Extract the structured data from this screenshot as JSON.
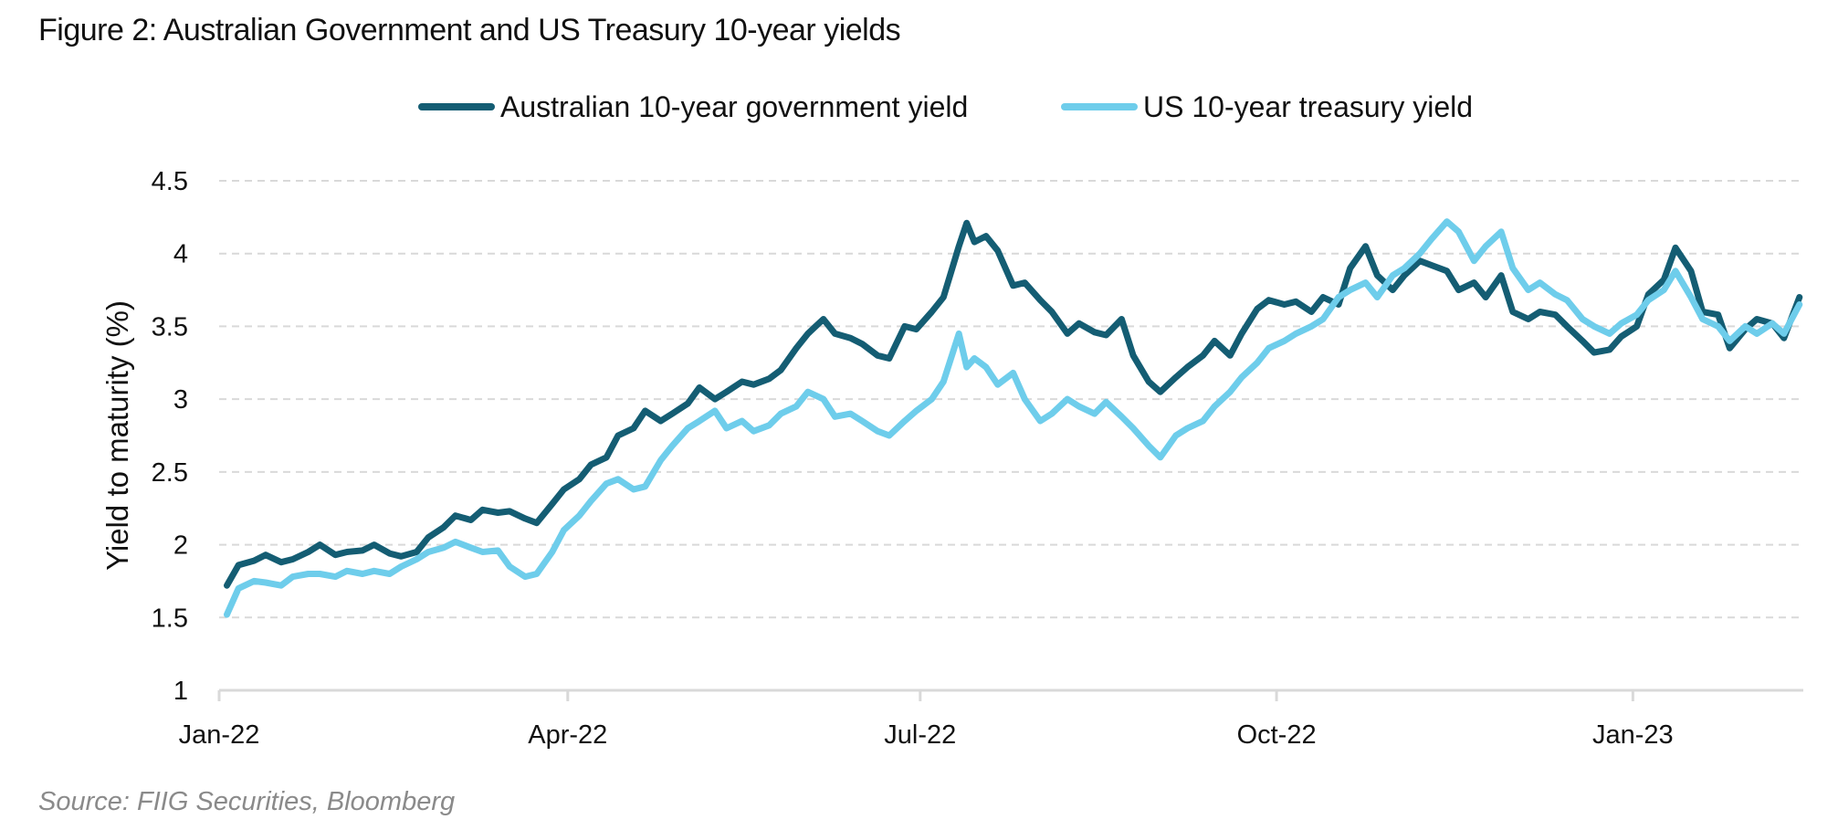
{
  "chart_data": {
    "type": "line",
    "title": "Figure 2: Australian Government and US Treasury 10-year yields",
    "ylabel": "Yield to maturity (%)",
    "xlabel": "",
    "ylim": [
      1,
      4.5
    ],
    "yticks": [
      "1",
      "1.5",
      "2",
      "2.5",
      "3",
      "3.5",
      "4",
      "4.5"
    ],
    "ytick_values": [
      1,
      1.5,
      2,
      2.5,
      3,
      3.5,
      4,
      4.5
    ],
    "xticks": [
      "Jan-22",
      "Apr-22",
      "Jul-22",
      "Oct-22",
      "Jan-23"
    ],
    "xtick_dates": [
      "2022-01-01",
      "2022-04-01",
      "2022-07-01",
      "2022-10-01",
      "2023-01-01"
    ],
    "xlim": [
      "2022-01-01",
      "2023-02-14"
    ],
    "grid": "horizontal dashed",
    "legend_position": "top",
    "source": "Source: FIIG Securities, Bloomberg",
    "series": [
      {
        "name": "Australian 10-year government yield",
        "color": "#145d73",
        "points": [
          [
            "2022-01-03",
            1.72
          ],
          [
            "2022-01-06",
            1.86
          ],
          [
            "2022-01-10",
            1.89
          ],
          [
            "2022-01-13",
            1.93
          ],
          [
            "2022-01-17",
            1.88
          ],
          [
            "2022-01-20",
            1.9
          ],
          [
            "2022-01-24",
            1.95
          ],
          [
            "2022-01-27",
            2.0
          ],
          [
            "2022-01-31",
            1.93
          ],
          [
            "2022-02-03",
            1.95
          ],
          [
            "2022-02-07",
            1.96
          ],
          [
            "2022-02-10",
            2.0
          ],
          [
            "2022-02-14",
            1.94
          ],
          [
            "2022-02-17",
            1.92
          ],
          [
            "2022-02-21",
            1.95
          ],
          [
            "2022-02-24",
            2.05
          ],
          [
            "2022-02-28",
            2.12
          ],
          [
            "2022-03-03",
            2.2
          ],
          [
            "2022-03-07",
            2.17
          ],
          [
            "2022-03-10",
            2.24
          ],
          [
            "2022-03-14",
            2.22
          ],
          [
            "2022-03-17",
            2.23
          ],
          [
            "2022-03-21",
            2.18
          ],
          [
            "2022-03-24",
            2.15
          ],
          [
            "2022-03-28",
            2.28
          ],
          [
            "2022-03-31",
            2.38
          ],
          [
            "2022-04-04",
            2.45
          ],
          [
            "2022-04-07",
            2.55
          ],
          [
            "2022-04-11",
            2.6
          ],
          [
            "2022-04-14",
            2.75
          ],
          [
            "2022-04-18",
            2.8
          ],
          [
            "2022-04-21",
            2.92
          ],
          [
            "2022-04-25",
            2.85
          ],
          [
            "2022-04-28",
            2.9
          ],
          [
            "2022-05-02",
            2.97
          ],
          [
            "2022-05-05",
            3.08
          ],
          [
            "2022-05-09",
            3.0
          ],
          [
            "2022-05-12",
            3.05
          ],
          [
            "2022-05-16",
            3.12
          ],
          [
            "2022-05-19",
            3.1
          ],
          [
            "2022-05-23",
            3.14
          ],
          [
            "2022-05-26",
            3.2
          ],
          [
            "2022-05-30",
            3.35
          ],
          [
            "2022-06-02",
            3.45
          ],
          [
            "2022-06-06",
            3.55
          ],
          [
            "2022-06-09",
            3.45
          ],
          [
            "2022-06-13",
            3.42
          ],
          [
            "2022-06-16",
            3.38
          ],
          [
            "2022-06-20",
            3.3
          ],
          [
            "2022-06-23",
            3.28
          ],
          [
            "2022-06-27",
            3.5
          ],
          [
            "2022-06-30",
            3.48
          ],
          [
            "2022-07-04",
            3.6
          ],
          [
            "2022-07-07",
            3.7
          ],
          [
            "2022-07-11",
            4.05
          ],
          [
            "2022-07-13",
            4.21
          ],
          [
            "2022-07-15",
            4.08
          ],
          [
            "2022-07-18",
            4.12
          ],
          [
            "2022-07-21",
            4.02
          ],
          [
            "2022-07-25",
            3.78
          ],
          [
            "2022-07-28",
            3.8
          ],
          [
            "2022-08-01",
            3.68
          ],
          [
            "2022-08-04",
            3.6
          ],
          [
            "2022-08-08",
            3.45
          ],
          [
            "2022-08-11",
            3.52
          ],
          [
            "2022-08-15",
            3.46
          ],
          [
            "2022-08-18",
            3.44
          ],
          [
            "2022-08-22",
            3.55
          ],
          [
            "2022-08-25",
            3.3
          ],
          [
            "2022-08-29",
            3.12
          ],
          [
            "2022-09-01",
            3.05
          ],
          [
            "2022-09-05",
            3.15
          ],
          [
            "2022-09-08",
            3.22
          ],
          [
            "2022-09-12",
            3.3
          ],
          [
            "2022-09-15",
            3.4
          ],
          [
            "2022-09-19",
            3.3
          ],
          [
            "2022-09-22",
            3.45
          ],
          [
            "2022-09-26",
            3.62
          ],
          [
            "2022-09-29",
            3.68
          ],
          [
            "2022-10-03",
            3.65
          ],
          [
            "2022-10-06",
            3.67
          ],
          [
            "2022-10-10",
            3.6
          ],
          [
            "2022-10-13",
            3.7
          ],
          [
            "2022-10-17",
            3.65
          ],
          [
            "2022-10-20",
            3.9
          ],
          [
            "2022-10-24",
            4.05
          ],
          [
            "2022-10-27",
            3.85
          ],
          [
            "2022-10-31",
            3.75
          ],
          [
            "2022-11-03",
            3.85
          ],
          [
            "2022-11-07",
            3.95
          ],
          [
            "2022-11-10",
            3.92
          ],
          [
            "2022-11-14",
            3.88
          ],
          [
            "2022-11-17",
            3.75
          ],
          [
            "2022-11-21",
            3.8
          ],
          [
            "2022-11-24",
            3.7
          ],
          [
            "2022-11-28",
            3.85
          ],
          [
            "2022-12-01",
            3.6
          ],
          [
            "2022-12-05",
            3.55
          ],
          [
            "2022-12-08",
            3.6
          ],
          [
            "2022-12-12",
            3.58
          ],
          [
            "2022-12-15",
            3.5
          ],
          [
            "2022-12-19",
            3.4
          ],
          [
            "2022-12-22",
            3.32
          ],
          [
            "2022-12-26",
            3.34
          ],
          [
            "2022-12-29",
            3.43
          ],
          [
            "2023-01-02",
            3.5
          ],
          [
            "2023-01-05",
            3.72
          ],
          [
            "2023-01-09",
            3.82
          ],
          [
            "2023-01-12",
            4.04
          ],
          [
            "2023-01-16",
            3.88
          ],
          [
            "2023-01-19",
            3.6
          ],
          [
            "2023-01-23",
            3.58
          ],
          [
            "2023-01-26",
            3.35
          ],
          [
            "2023-01-30",
            3.48
          ],
          [
            "2023-02-02",
            3.55
          ],
          [
            "2023-02-06",
            3.52
          ],
          [
            "2023-02-09",
            3.42
          ],
          [
            "2023-02-13",
            3.7
          ]
        ]
      },
      {
        "name": "US 10-year treasury yield",
        "color": "#6ecdeb",
        "points": [
          [
            "2022-01-03",
            1.52
          ],
          [
            "2022-01-06",
            1.7
          ],
          [
            "2022-01-10",
            1.75
          ],
          [
            "2022-01-13",
            1.74
          ],
          [
            "2022-01-17",
            1.72
          ],
          [
            "2022-01-20",
            1.78
          ],
          [
            "2022-01-24",
            1.8
          ],
          [
            "2022-01-27",
            1.8
          ],
          [
            "2022-01-31",
            1.78
          ],
          [
            "2022-02-03",
            1.82
          ],
          [
            "2022-02-07",
            1.8
          ],
          [
            "2022-02-10",
            1.82
          ],
          [
            "2022-02-14",
            1.8
          ],
          [
            "2022-02-17",
            1.85
          ],
          [
            "2022-02-21",
            1.9
          ],
          [
            "2022-02-24",
            1.95
          ],
          [
            "2022-02-28",
            1.98
          ],
          [
            "2022-03-03",
            2.02
          ],
          [
            "2022-03-07",
            1.98
          ],
          [
            "2022-03-10",
            1.95
          ],
          [
            "2022-03-14",
            1.96
          ],
          [
            "2022-03-17",
            1.85
          ],
          [
            "2022-03-21",
            1.78
          ],
          [
            "2022-03-24",
            1.8
          ],
          [
            "2022-03-28",
            1.95
          ],
          [
            "2022-03-31",
            2.1
          ],
          [
            "2022-04-04",
            2.2
          ],
          [
            "2022-04-07",
            2.3
          ],
          [
            "2022-04-11",
            2.42
          ],
          [
            "2022-04-14",
            2.45
          ],
          [
            "2022-04-18",
            2.38
          ],
          [
            "2022-04-21",
            2.4
          ],
          [
            "2022-04-25",
            2.58
          ],
          [
            "2022-04-28",
            2.68
          ],
          [
            "2022-05-02",
            2.8
          ],
          [
            "2022-05-05",
            2.85
          ],
          [
            "2022-05-09",
            2.92
          ],
          [
            "2022-05-12",
            2.8
          ],
          [
            "2022-05-16",
            2.85
          ],
          [
            "2022-05-19",
            2.78
          ],
          [
            "2022-05-23",
            2.82
          ],
          [
            "2022-05-26",
            2.9
          ],
          [
            "2022-05-30",
            2.95
          ],
          [
            "2022-06-02",
            3.05
          ],
          [
            "2022-06-06",
            3.0
          ],
          [
            "2022-06-09",
            2.88
          ],
          [
            "2022-06-13",
            2.9
          ],
          [
            "2022-06-16",
            2.85
          ],
          [
            "2022-06-20",
            2.78
          ],
          [
            "2022-06-23",
            2.75
          ],
          [
            "2022-06-27",
            2.85
          ],
          [
            "2022-06-30",
            2.92
          ],
          [
            "2022-07-04",
            3.0
          ],
          [
            "2022-07-07",
            3.12
          ],
          [
            "2022-07-11",
            3.45
          ],
          [
            "2022-07-13",
            3.22
          ],
          [
            "2022-07-15",
            3.28
          ],
          [
            "2022-07-18",
            3.22
          ],
          [
            "2022-07-21",
            3.1
          ],
          [
            "2022-07-25",
            3.18
          ],
          [
            "2022-07-28",
            3.0
          ],
          [
            "2022-08-01",
            2.85
          ],
          [
            "2022-08-04",
            2.9
          ],
          [
            "2022-08-08",
            3.0
          ],
          [
            "2022-08-11",
            2.95
          ],
          [
            "2022-08-15",
            2.9
          ],
          [
            "2022-08-18",
            2.98
          ],
          [
            "2022-08-22",
            2.88
          ],
          [
            "2022-08-25",
            2.8
          ],
          [
            "2022-08-29",
            2.68
          ],
          [
            "2022-09-01",
            2.6
          ],
          [
            "2022-09-05",
            2.75
          ],
          [
            "2022-09-08",
            2.8
          ],
          [
            "2022-09-12",
            2.85
          ],
          [
            "2022-09-15",
            2.95
          ],
          [
            "2022-09-19",
            3.05
          ],
          [
            "2022-09-22",
            3.15
          ],
          [
            "2022-09-26",
            3.25
          ],
          [
            "2022-09-29",
            3.35
          ],
          [
            "2022-10-03",
            3.4
          ],
          [
            "2022-10-06",
            3.45
          ],
          [
            "2022-10-10",
            3.5
          ],
          [
            "2022-10-13",
            3.55
          ],
          [
            "2022-10-17",
            3.7
          ],
          [
            "2022-10-20",
            3.75
          ],
          [
            "2022-10-24",
            3.8
          ],
          [
            "2022-10-27",
            3.7
          ],
          [
            "2022-10-31",
            3.85
          ],
          [
            "2022-11-03",
            3.9
          ],
          [
            "2022-11-07",
            4.0
          ],
          [
            "2022-11-10",
            4.1
          ],
          [
            "2022-11-14",
            4.22
          ],
          [
            "2022-11-17",
            4.15
          ],
          [
            "2022-11-21",
            3.95
          ],
          [
            "2022-11-24",
            4.05
          ],
          [
            "2022-11-28",
            4.15
          ],
          [
            "2022-12-01",
            3.9
          ],
          [
            "2022-12-05",
            3.75
          ],
          [
            "2022-12-08",
            3.8
          ],
          [
            "2022-12-12",
            3.72
          ],
          [
            "2022-12-15",
            3.68
          ],
          [
            "2022-12-19",
            3.55
          ],
          [
            "2022-12-22",
            3.5
          ],
          [
            "2022-12-26",
            3.45
          ],
          [
            "2022-12-29",
            3.52
          ],
          [
            "2023-01-02",
            3.58
          ],
          [
            "2023-01-05",
            3.68
          ],
          [
            "2023-01-09",
            3.75
          ],
          [
            "2023-01-12",
            3.88
          ],
          [
            "2023-01-16",
            3.7
          ],
          [
            "2023-01-19",
            3.55
          ],
          [
            "2023-01-23",
            3.5
          ],
          [
            "2023-01-26",
            3.4
          ],
          [
            "2023-01-30",
            3.5
          ],
          [
            "2023-02-02",
            3.45
          ],
          [
            "2023-02-06",
            3.52
          ],
          [
            "2023-02-09",
            3.45
          ],
          [
            "2023-02-13",
            3.65
          ]
        ]
      }
    ]
  }
}
